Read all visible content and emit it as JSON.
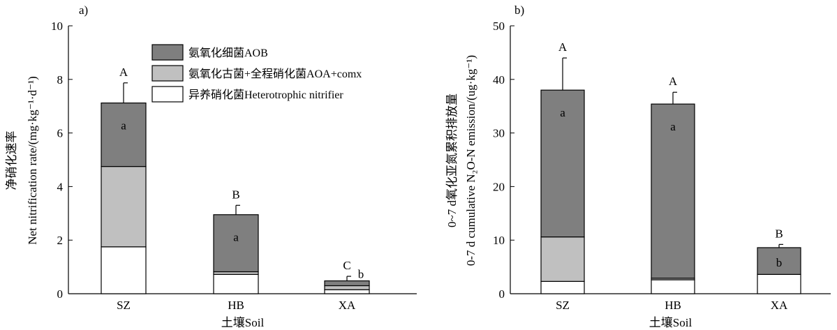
{
  "colors": {
    "AOB": "#7f7f7f",
    "AOA_comx": "#c0c0c0",
    "heterotrophic": "#ffffff"
  },
  "legend": [
    {
      "key": "AOB",
      "label": "氨氧化细菌AOB"
    },
    {
      "key": "AOA_comx",
      "label": "氨氧化古菌+全程硝化菌AOA+comx"
    },
    {
      "key": "heterotrophic",
      "label": "异养硝化菌Heterotrophic nitrifier"
    }
  ],
  "chart_data": [
    {
      "panel": "a)",
      "type": "bar",
      "stacked": true,
      "categories": [
        "SZ",
        "HB",
        "XA"
      ],
      "xlabel": "土壤Soil",
      "ylabel_cn": "净硝化速率",
      "ylabel_en": "Net nitrification rate/(mg·kg⁻¹·d⁻¹)",
      "ylim": [
        0,
        10
      ],
      "yticks": [
        0,
        2,
        4,
        6,
        8,
        10
      ],
      "legend_position": "top-right",
      "series": [
        {
          "key": "heterotrophic",
          "name": "异养硝化菌Heterotrophic nitrifier",
          "values": [
            1.75,
            0.72,
            0.15
          ],
          "errors": [
            0.28,
            0.15,
            0.07
          ]
        },
        {
          "key": "AOA_comx",
          "name": "氨氧化古菌+全程硝化菌AOA+comx",
          "values": [
            3.0,
            0.1,
            0.15
          ],
          "errors": [
            0.55,
            0.35,
            0.1
          ]
        },
        {
          "key": "AOB",
          "name": "氨氧化细菌AOB",
          "values": [
            2.37,
            2.13,
            0.18
          ],
          "errors": [
            0.75,
            0.35,
            0.17
          ]
        }
      ],
      "total_letters": [
        "A",
        "B",
        "C"
      ],
      "aob_letters": [
        "a",
        "a",
        "b"
      ]
    },
    {
      "panel": "b)",
      "type": "bar",
      "stacked": true,
      "categories": [
        "SZ",
        "HB",
        "XA"
      ],
      "xlabel": "土壤Soil",
      "ylabel_cn": "0~7 d氧化亚氮累积排放量",
      "ylabel_en": "0-7 d cumulative N₂O-N emission/(ug·kg⁻¹)",
      "ylim": [
        0,
        50
      ],
      "yticks": [
        0,
        10,
        20,
        30,
        40,
        50
      ],
      "series": [
        {
          "key": "heterotrophic",
          "name": "异养硝化菌Heterotrophic nitrifier",
          "values": [
            2.3,
            2.6,
            3.6
          ],
          "errors": [
            0.9,
            2.1,
            2.1
          ]
        },
        {
          "key": "AOA_comx",
          "name": "氨氧化古菌+全程硝化菌AOA+comx",
          "values": [
            8.3,
            0.3,
            0.0
          ],
          "errors": [
            1.6,
            2.6,
            0.0
          ]
        },
        {
          "key": "AOB",
          "name": "氨氧化细菌AOB",
          "values": [
            27.4,
            32.5,
            5.0
          ],
          "errors": [
            6.0,
            2.2,
            0.6
          ]
        }
      ],
      "total_letters": [
        "A",
        "A",
        "B"
      ],
      "aob_letters": [
        "a",
        "a",
        "b"
      ]
    }
  ]
}
